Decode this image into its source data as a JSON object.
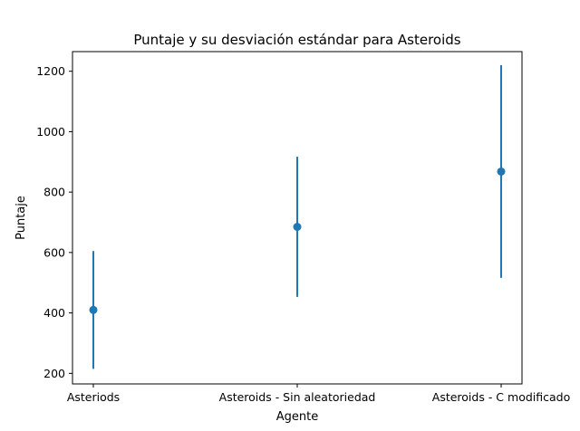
{
  "chart_data": {
    "type": "scatter",
    "title": "Puntaje y su desviación estándar para Asteroids",
    "xlabel": "Agente",
    "ylabel": "Puntaje",
    "categories": [
      "Asteriods",
      "Asteroids - Sin aleatoriedad",
      "Asteroids - C modificado"
    ],
    "series": [
      {
        "values": [
          410,
          685,
          868
        ],
        "errors": [
          195,
          232,
          352
        ]
      }
    ],
    "ylim": [
      165,
      1265
    ],
    "yticks": [
      200,
      400,
      600,
      800,
      1000,
      1200
    ],
    "grid": false,
    "color": "#1f77b4"
  }
}
